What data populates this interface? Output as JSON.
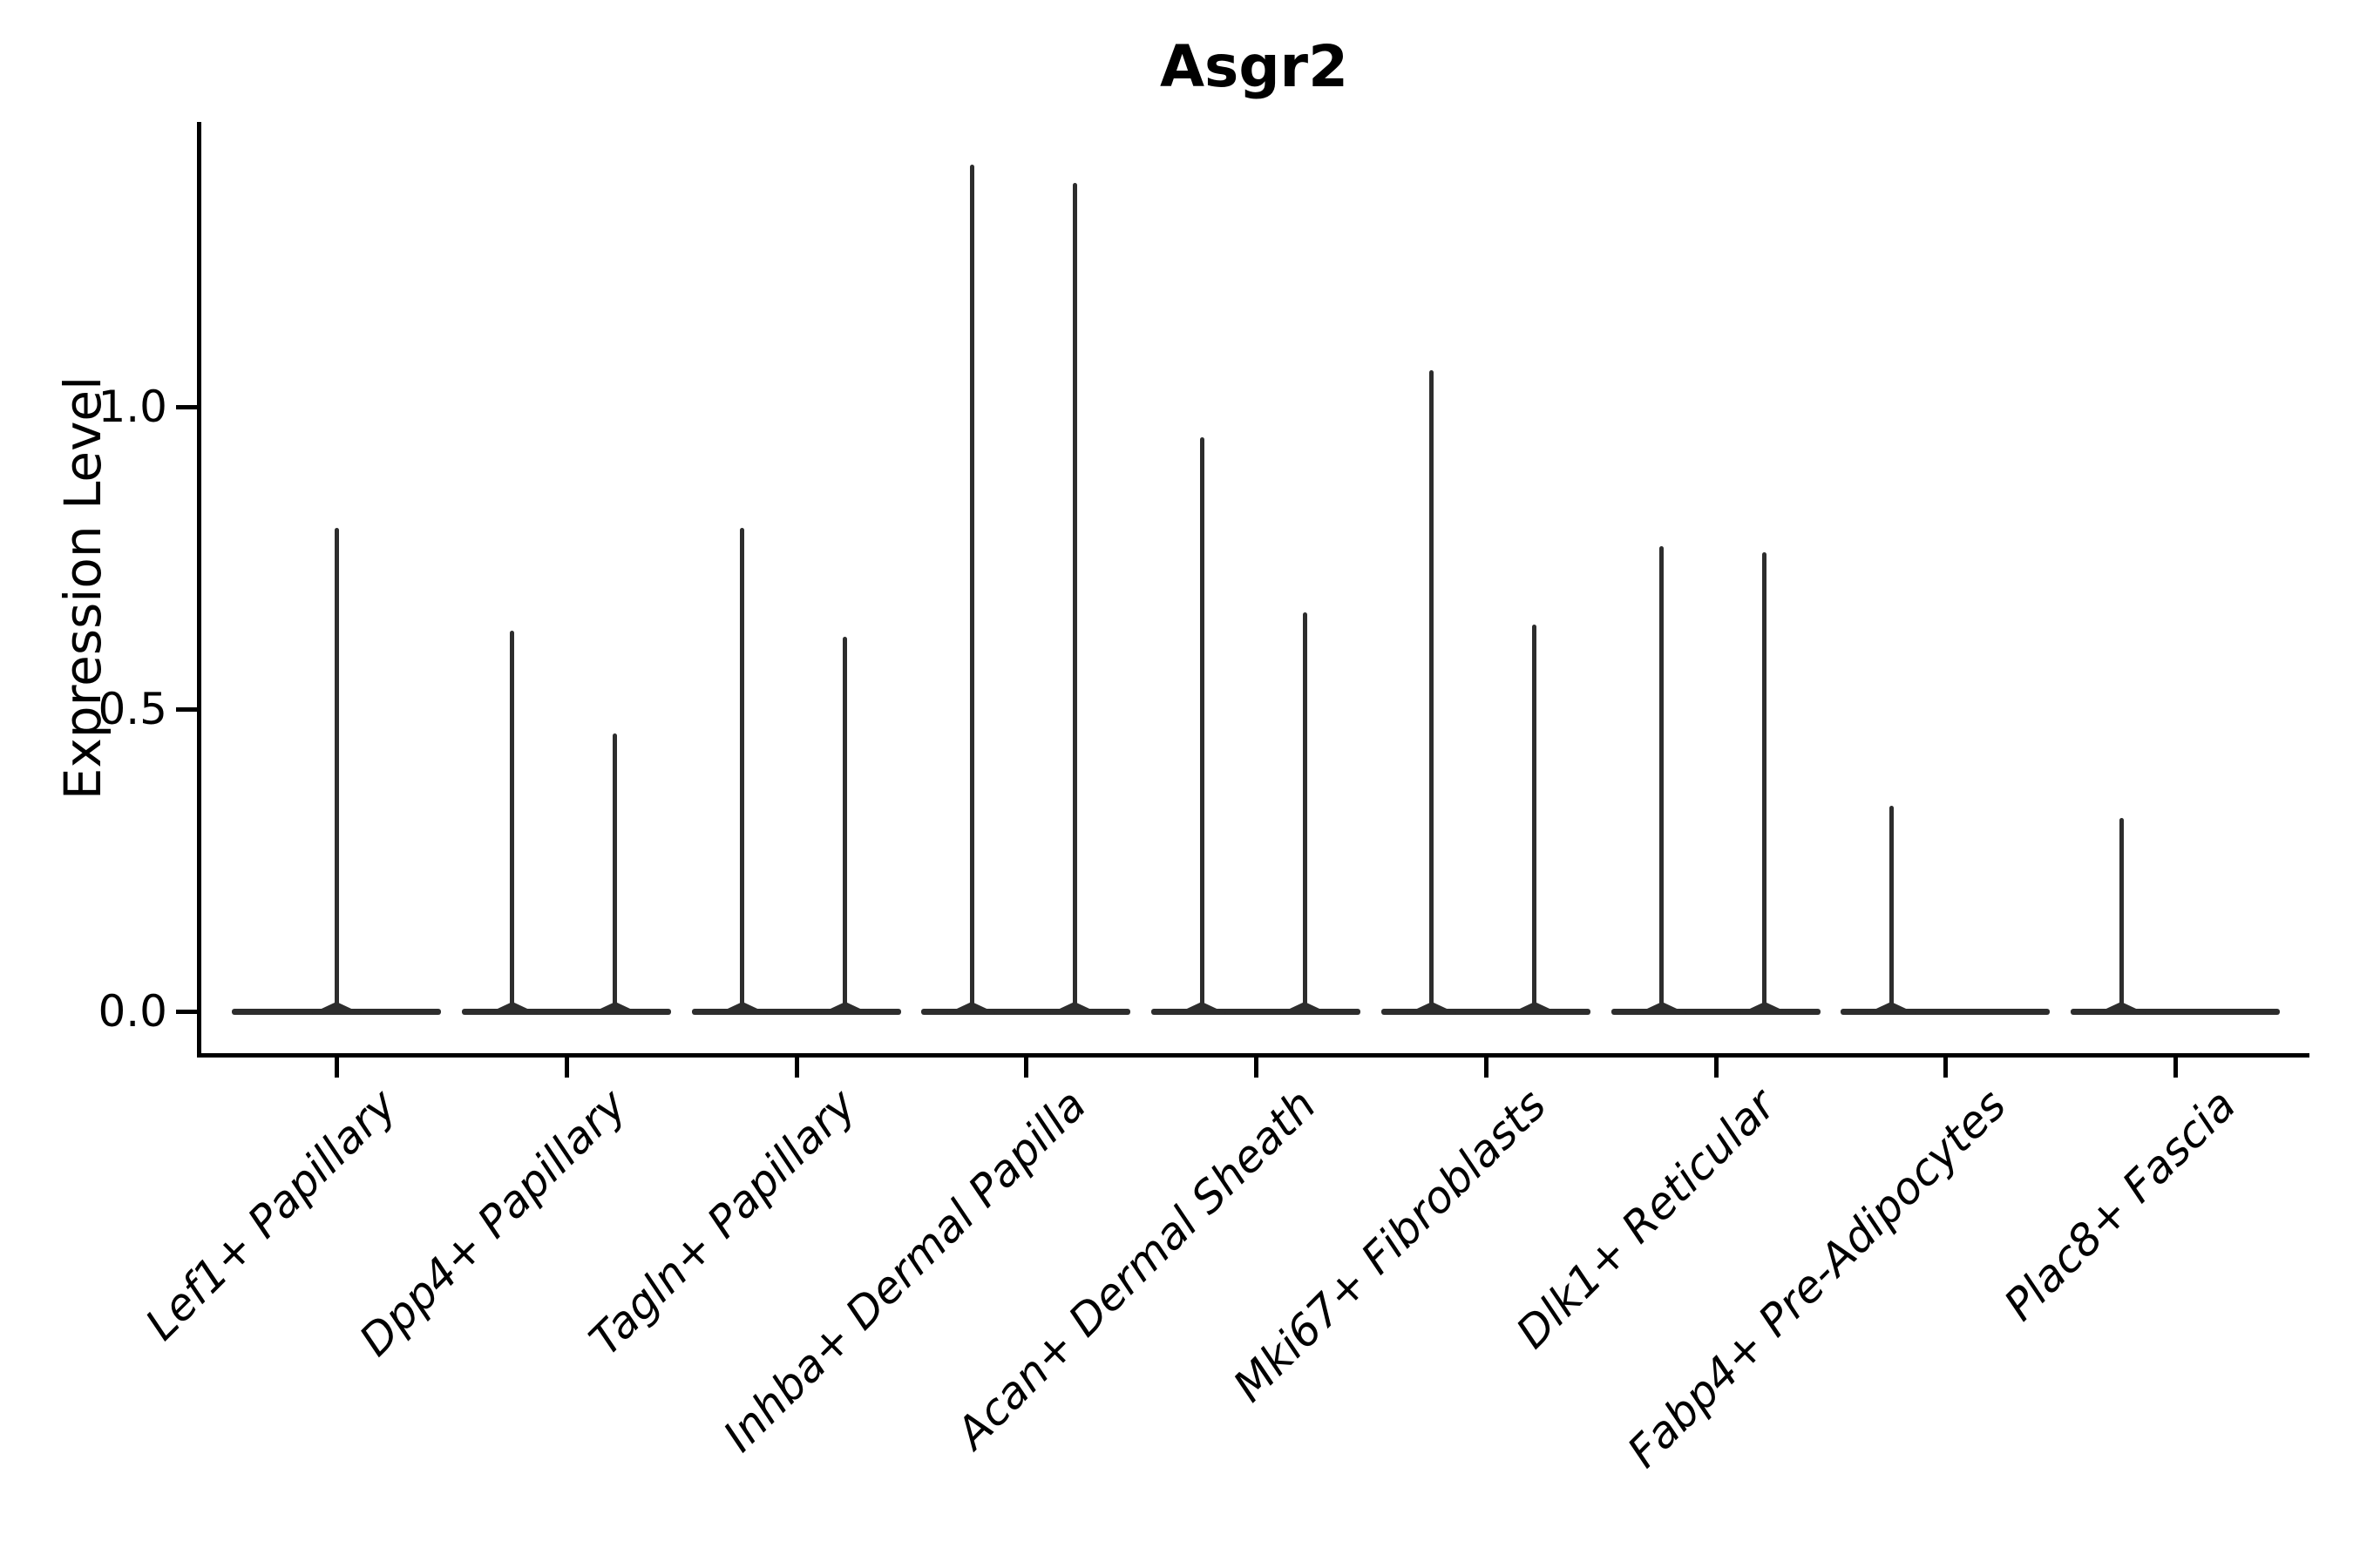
{
  "title": "Asgr2",
  "y_axis": {
    "label": "Expression Level",
    "ticks": [
      {
        "label": "0.0",
        "value": 0.0
      },
      {
        "label": "0.5",
        "value": 0.5
      },
      {
        "label": "1.0",
        "value": 1.0
      }
    ]
  },
  "x_axis": {
    "tick_labels": [
      "Lef1+ Papillary",
      "Dpp4+ Papillary",
      "Tagln+ Papillary",
      "Inhba+ Dermal Papilla",
      "Acan+ Dermal Sheath",
      "Mki67+ Fibroblasts",
      "Dlk1+ Reticular",
      "Fabp4+ Pre-Adipocytes",
      "Plac8+ Fascia"
    ]
  },
  "chart_data": {
    "type": "violin",
    "title": "Asgr2",
    "xlabel": "",
    "ylabel": "Expression Level",
    "ylim": [
      -0.07,
      1.47
    ],
    "yticks": [
      0.0,
      0.5,
      1.0
    ],
    "grid": false,
    "legend": false,
    "baseline_value": 0.0,
    "categories": [
      "Lef1+ Papillary",
      "Dpp4+ Papillary",
      "Tagln+ Papillary",
      "Inhba+ Dermal Papilla",
      "Acan+ Dermal Sheath",
      "Mki67+ Fibroblasts",
      "Dlk1+ Reticular",
      "Fabp4+ Pre-Adipocytes",
      "Plac8+ Fascia"
    ],
    "violins": [
      {
        "category": "Lef1+ Papillary",
        "spikes": [
          {
            "slot": "center",
            "max": 0.8
          }
        ]
      },
      {
        "category": "Dpp4+ Papillary",
        "spikes": [
          {
            "slot": "left",
            "max": 0.63
          },
          {
            "slot": "right",
            "max": 0.46
          }
        ]
      },
      {
        "category": "Tagln+ Papillary",
        "spikes": [
          {
            "slot": "left",
            "max": 0.8
          },
          {
            "slot": "right",
            "max": 0.62
          }
        ]
      },
      {
        "category": "Inhba+ Dermal Papilla",
        "spikes": [
          {
            "slot": "left",
            "max": 1.4
          },
          {
            "slot": "right",
            "max": 1.37
          }
        ]
      },
      {
        "category": "Acan+ Dermal Sheath",
        "spikes": [
          {
            "slot": "left",
            "max": 0.95
          },
          {
            "slot": "right",
            "max": 0.66
          }
        ]
      },
      {
        "category": "Mki67+ Fibroblasts",
        "spikes": [
          {
            "slot": "left",
            "max": 1.06
          },
          {
            "slot": "right",
            "max": 0.64
          }
        ]
      },
      {
        "category": "Dlk1+ Reticular",
        "spikes": [
          {
            "slot": "left",
            "max": 0.77
          },
          {
            "slot": "right",
            "max": 0.76
          }
        ]
      },
      {
        "category": "Fabp4+ Pre-Adipocytes",
        "spikes": [
          {
            "slot": "left",
            "max": 0.34
          }
        ]
      },
      {
        "category": "Plac8+ Fascia",
        "spikes": [
          {
            "slot": "left",
            "max": 0.32
          }
        ]
      }
    ]
  },
  "colors": {
    "violin": "#2d2d2d",
    "axis": "#000000",
    "text": "#000000",
    "background": "#ffffff"
  }
}
